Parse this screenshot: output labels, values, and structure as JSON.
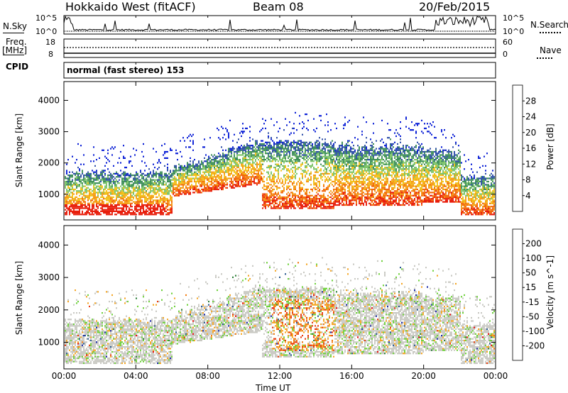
{
  "header": {
    "station": "Hokkaido West (fitACF)",
    "beam": "Beam 08",
    "date": "20/Feb/2015"
  },
  "top_panels": {
    "nsky_label": "N.Sky",
    "nsearch_label": "N.Search",
    "noise_ticks_left": [
      "10^5",
      "10^0"
    ],
    "noise_ticks_right": [
      "10^5",
      "10^0"
    ],
    "freq_label_1": "Freq.",
    "freq_label_2": "[MHz]",
    "freq_ticks": [
      "18",
      "8"
    ],
    "nave_label": "Nave",
    "nave_ticks": [
      "60",
      "0"
    ],
    "cpid_label": "CPID",
    "cpid_text": "normal (fast stereo) 153"
  },
  "colors": {
    "power_scale": [
      "#0a1fd6",
      "#2f4fa8",
      "#3f8f5a",
      "#7fc56a",
      "#f2c21a",
      "#f59a14",
      "#f2670c",
      "#e81e0c"
    ],
    "velocity_scale": [
      "#1c2aa8",
      "#2a5a90",
      "#2e7f3a",
      "#6fd13c",
      "#c9c9c3",
      "#c9c9c3",
      "#f5a623",
      "#f27a10",
      "#e83a0c",
      "#e80c0c"
    ]
  },
  "chart_data": [
    {
      "type": "heatmap",
      "name": "power",
      "ylabel": "Slant Range [km]",
      "colorbar_label": "Power [dB]",
      "colorbar_ticks": [
        "28",
        "24",
        "20",
        "16",
        "12",
        "8",
        "4"
      ],
      "y_ticks": [
        "4000",
        "3000",
        "2000",
        "1000"
      ],
      "ylim": [
        180,
        4600
      ],
      "x_ticks": [
        "00:00",
        "04:00",
        "08:00",
        "12:00",
        "16:00",
        "20:00",
        "00:00"
      ],
      "xlim_hours": [
        0,
        24
      ],
      "grid": false
    },
    {
      "type": "heatmap",
      "name": "velocity",
      "ylabel": "Slant Range [km]",
      "colorbar_label": "Velocity [m s^-1]",
      "colorbar_ticks": [
        "200",
        "100",
        "50",
        "15",
        "-15",
        "-50",
        "-100",
        "-200"
      ],
      "y_ticks": [
        "4000",
        "3000",
        "2000",
        "1000"
      ],
      "ylim": [
        180,
        4600
      ],
      "x_ticks": [
        "00:00",
        "04:00",
        "08:00",
        "12:00",
        "16:00",
        "20:00",
        "00:00"
      ],
      "xlim_hours": [
        0,
        24
      ],
      "xlabel": "Time UT",
      "grid": false
    }
  ]
}
